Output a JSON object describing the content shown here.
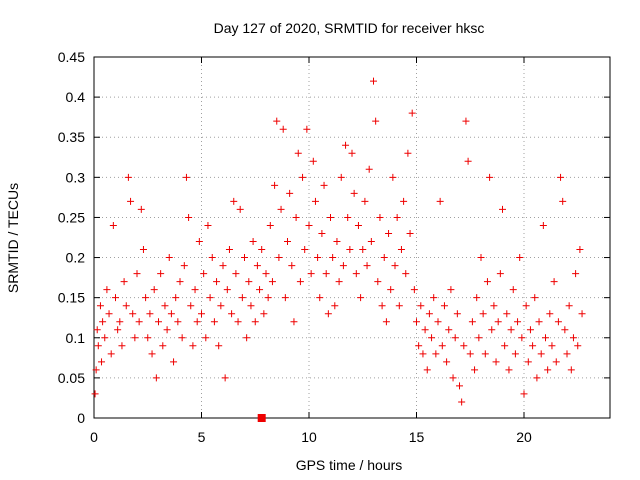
{
  "chart_data": {
    "type": "scatter",
    "title": "Day 127 of 2020, SRMTID for receiver hksc",
    "xlabel": "GPS time / hours",
    "ylabel": "SRMTID / TECUs",
    "xlim": [
      0,
      24
    ],
    "ylim": [
      0,
      0.45
    ],
    "xticks": [
      0,
      5,
      10,
      15,
      20
    ],
    "xtick_labels": [
      "0",
      "5",
      "10",
      "15",
      "20"
    ],
    "yticks": [
      0,
      0.05,
      0.1,
      0.15,
      0.2,
      0.25,
      0.3,
      0.35,
      0.4,
      0.45
    ],
    "ytick_labels": [
      "0",
      "0.05",
      "0.1",
      "0.15",
      "0.2",
      "0.25",
      "0.3",
      "0.35",
      "0.4",
      "0.45"
    ],
    "grid": true,
    "marker": "plus",
    "color": "#ee0000",
    "square_marker": {
      "x": 7.8,
      "y": 0.0
    },
    "series": [
      {
        "name": "SRMTID",
        "points": [
          [
            0.05,
            0.03
          ],
          [
            0.1,
            0.06
          ],
          [
            0.15,
            0.11
          ],
          [
            0.2,
            0.09
          ],
          [
            0.3,
            0.14
          ],
          [
            0.35,
            0.07
          ],
          [
            0.4,
            0.12
          ],
          [
            0.5,
            0.1
          ],
          [
            0.6,
            0.16
          ],
          [
            0.7,
            0.13
          ],
          [
            0.8,
            0.08
          ],
          [
            0.9,
            0.24
          ],
          [
            1.0,
            0.15
          ],
          [
            1.1,
            0.11
          ],
          [
            1.2,
            0.12
          ],
          [
            1.3,
            0.09
          ],
          [
            1.4,
            0.17
          ],
          [
            1.5,
            0.14
          ],
          [
            1.6,
            0.3
          ],
          [
            1.7,
            0.27
          ],
          [
            1.8,
            0.13
          ],
          [
            1.9,
            0.1
          ],
          [
            2.0,
            0.18
          ],
          [
            2.1,
            0.12
          ],
          [
            2.2,
            0.26
          ],
          [
            2.3,
            0.21
          ],
          [
            2.4,
            0.15
          ],
          [
            2.5,
            0.1
          ],
          [
            2.6,
            0.13
          ],
          [
            2.7,
            0.08
          ],
          [
            2.8,
            0.16
          ],
          [
            2.9,
            0.05
          ],
          [
            3.0,
            0.12
          ],
          [
            3.1,
            0.18
          ],
          [
            3.2,
            0.09
          ],
          [
            3.3,
            0.14
          ],
          [
            3.4,
            0.11
          ],
          [
            3.5,
            0.2
          ],
          [
            3.6,
            0.13
          ],
          [
            3.7,
            0.07
          ],
          [
            3.8,
            0.15
          ],
          [
            3.9,
            0.12
          ],
          [
            4.0,
            0.17
          ],
          [
            4.1,
            0.1
          ],
          [
            4.2,
            0.19
          ],
          [
            4.3,
            0.3
          ],
          [
            4.4,
            0.25
          ],
          [
            4.5,
            0.14
          ],
          [
            4.6,
            0.09
          ],
          [
            4.7,
            0.16
          ],
          [
            4.8,
            0.12
          ],
          [
            4.9,
            0.22
          ],
          [
            5.0,
            0.13
          ],
          [
            5.1,
            0.18
          ],
          [
            5.2,
            0.1
          ],
          [
            5.3,
            0.24
          ],
          [
            5.4,
            0.15
          ],
          [
            5.5,
            0.2
          ],
          [
            5.6,
            0.12
          ],
          [
            5.7,
            0.17
          ],
          [
            5.8,
            0.09
          ],
          [
            5.9,
            0.14
          ],
          [
            6.0,
            0.19
          ],
          [
            6.1,
            0.05
          ],
          [
            6.2,
            0.16
          ],
          [
            6.3,
            0.21
          ],
          [
            6.4,
            0.13
          ],
          [
            6.5,
            0.27
          ],
          [
            6.6,
            0.18
          ],
          [
            6.7,
            0.12
          ],
          [
            6.8,
            0.26
          ],
          [
            6.9,
            0.15
          ],
          [
            7.0,
            0.2
          ],
          [
            7.1,
            0.1
          ],
          [
            7.2,
            0.17
          ],
          [
            7.3,
            0.14
          ],
          [
            7.4,
            0.22
          ],
          [
            7.5,
            0.12
          ],
          [
            7.6,
            0.19
          ],
          [
            7.7,
            0.16
          ],
          [
            7.8,
            0.21
          ],
          [
            7.9,
            0.13
          ],
          [
            8.0,
            0.18
          ],
          [
            8.1,
            0.15
          ],
          [
            8.2,
            0.24
          ],
          [
            8.3,
            0.17
          ],
          [
            8.4,
            0.29
          ],
          [
            8.5,
            0.37
          ],
          [
            8.6,
            0.2
          ],
          [
            8.7,
            0.26
          ],
          [
            8.8,
            0.36
          ],
          [
            8.9,
            0.15
          ],
          [
            9.0,
            0.22
          ],
          [
            9.1,
            0.28
          ],
          [
            9.2,
            0.19
          ],
          [
            9.3,
            0.12
          ],
          [
            9.4,
            0.25
          ],
          [
            9.5,
            0.33
          ],
          [
            9.6,
            0.17
          ],
          [
            9.7,
            0.3
          ],
          [
            9.8,
            0.21
          ],
          [
            9.9,
            0.36
          ],
          [
            10.0,
            0.24
          ],
          [
            10.1,
            0.18
          ],
          [
            10.2,
            0.32
          ],
          [
            10.3,
            0.27
          ],
          [
            10.4,
            0.2
          ],
          [
            10.5,
            0.15
          ],
          [
            10.6,
            0.23
          ],
          [
            10.7,
            0.29
          ],
          [
            10.8,
            0.18
          ],
          [
            10.9,
            0.13
          ],
          [
            11.0,
            0.25
          ],
          [
            11.1,
            0.2
          ],
          [
            11.2,
            0.14
          ],
          [
            11.3,
            0.22
          ],
          [
            11.4,
            0.17
          ],
          [
            11.5,
            0.3
          ],
          [
            11.6,
            0.19
          ],
          [
            11.7,
            0.34
          ],
          [
            11.8,
            0.25
          ],
          [
            11.9,
            0.21
          ],
          [
            12.0,
            0.33
          ],
          [
            12.1,
            0.28
          ],
          [
            12.2,
            0.18
          ],
          [
            12.3,
            0.24
          ],
          [
            12.4,
            0.15
          ],
          [
            12.5,
            0.21
          ],
          [
            12.6,
            0.27
          ],
          [
            12.7,
            0.19
          ],
          [
            12.8,
            0.31
          ],
          [
            12.9,
            0.22
          ],
          [
            13.0,
            0.42
          ],
          [
            13.1,
            0.37
          ],
          [
            13.2,
            0.17
          ],
          [
            13.3,
            0.25
          ],
          [
            13.4,
            0.14
          ],
          [
            13.5,
            0.2
          ],
          [
            13.6,
            0.12
          ],
          [
            13.7,
            0.23
          ],
          [
            13.8,
            0.16
          ],
          [
            13.9,
            0.3
          ],
          [
            14.0,
            0.19
          ],
          [
            14.1,
            0.25
          ],
          [
            14.2,
            0.14
          ],
          [
            14.3,
            0.21
          ],
          [
            14.4,
            0.27
          ],
          [
            14.5,
            0.18
          ],
          [
            14.6,
            0.33
          ],
          [
            14.7,
            0.23
          ],
          [
            14.8,
            0.38
          ],
          [
            14.9,
            0.16
          ],
          [
            15.0,
            0.12
          ],
          [
            15.1,
            0.09
          ],
          [
            15.2,
            0.14
          ],
          [
            15.3,
            0.08
          ],
          [
            15.4,
            0.11
          ],
          [
            15.5,
            0.06
          ],
          [
            15.6,
            0.13
          ],
          [
            15.7,
            0.1
          ],
          [
            15.8,
            0.15
          ],
          [
            15.9,
            0.08
          ],
          [
            16.0,
            0.12
          ],
          [
            16.1,
            0.27
          ],
          [
            16.2,
            0.09
          ],
          [
            16.3,
            0.14
          ],
          [
            16.4,
            0.07
          ],
          [
            16.5,
            0.11
          ],
          [
            16.6,
            0.16
          ],
          [
            16.7,
            0.05
          ],
          [
            16.8,
            0.1
          ],
          [
            16.9,
            0.13
          ],
          [
            17.0,
            0.04
          ],
          [
            17.1,
            0.02
          ],
          [
            17.2,
            0.09
          ],
          [
            17.3,
            0.37
          ],
          [
            17.4,
            0.32
          ],
          [
            17.5,
            0.08
          ],
          [
            17.6,
            0.12
          ],
          [
            17.7,
            0.06
          ],
          [
            17.8,
            0.15
          ],
          [
            17.9,
            0.1
          ],
          [
            18.0,
            0.2
          ],
          [
            18.1,
            0.13
          ],
          [
            18.2,
            0.08
          ],
          [
            18.3,
            0.17
          ],
          [
            18.4,
            0.3
          ],
          [
            18.5,
            0.11
          ],
          [
            18.6,
            0.14
          ],
          [
            18.7,
            0.07
          ],
          [
            18.8,
            0.12
          ],
          [
            18.9,
            0.18
          ],
          [
            19.0,
            0.26
          ],
          [
            19.1,
            0.09
          ],
          [
            19.2,
            0.13
          ],
          [
            19.3,
            0.06
          ],
          [
            19.4,
            0.11
          ],
          [
            19.5,
            0.16
          ],
          [
            19.6,
            0.08
          ],
          [
            19.7,
            0.12
          ],
          [
            19.8,
            0.2
          ],
          [
            19.9,
            0.1
          ],
          [
            20.0,
            0.03
          ],
          [
            20.1,
            0.14
          ],
          [
            20.2,
            0.07
          ],
          [
            20.3,
            0.11
          ],
          [
            20.4,
            0.09
          ],
          [
            20.5,
            0.15
          ],
          [
            20.6,
            0.05
          ],
          [
            20.7,
            0.12
          ],
          [
            20.8,
            0.08
          ],
          [
            20.9,
            0.24
          ],
          [
            21.0,
            0.1
          ],
          [
            21.1,
            0.06
          ],
          [
            21.2,
            0.13
          ],
          [
            21.3,
            0.09
          ],
          [
            21.4,
            0.17
          ],
          [
            21.5,
            0.07
          ],
          [
            21.6,
            0.12
          ],
          [
            21.7,
            0.3
          ],
          [
            21.8,
            0.27
          ],
          [
            21.9,
            0.11
          ],
          [
            22.0,
            0.08
          ],
          [
            22.1,
            0.14
          ],
          [
            22.2,
            0.06
          ],
          [
            22.3,
            0.1
          ],
          [
            22.4,
            0.18
          ],
          [
            22.5,
            0.09
          ],
          [
            22.6,
            0.21
          ],
          [
            22.7,
            0.13
          ]
        ]
      }
    ]
  }
}
